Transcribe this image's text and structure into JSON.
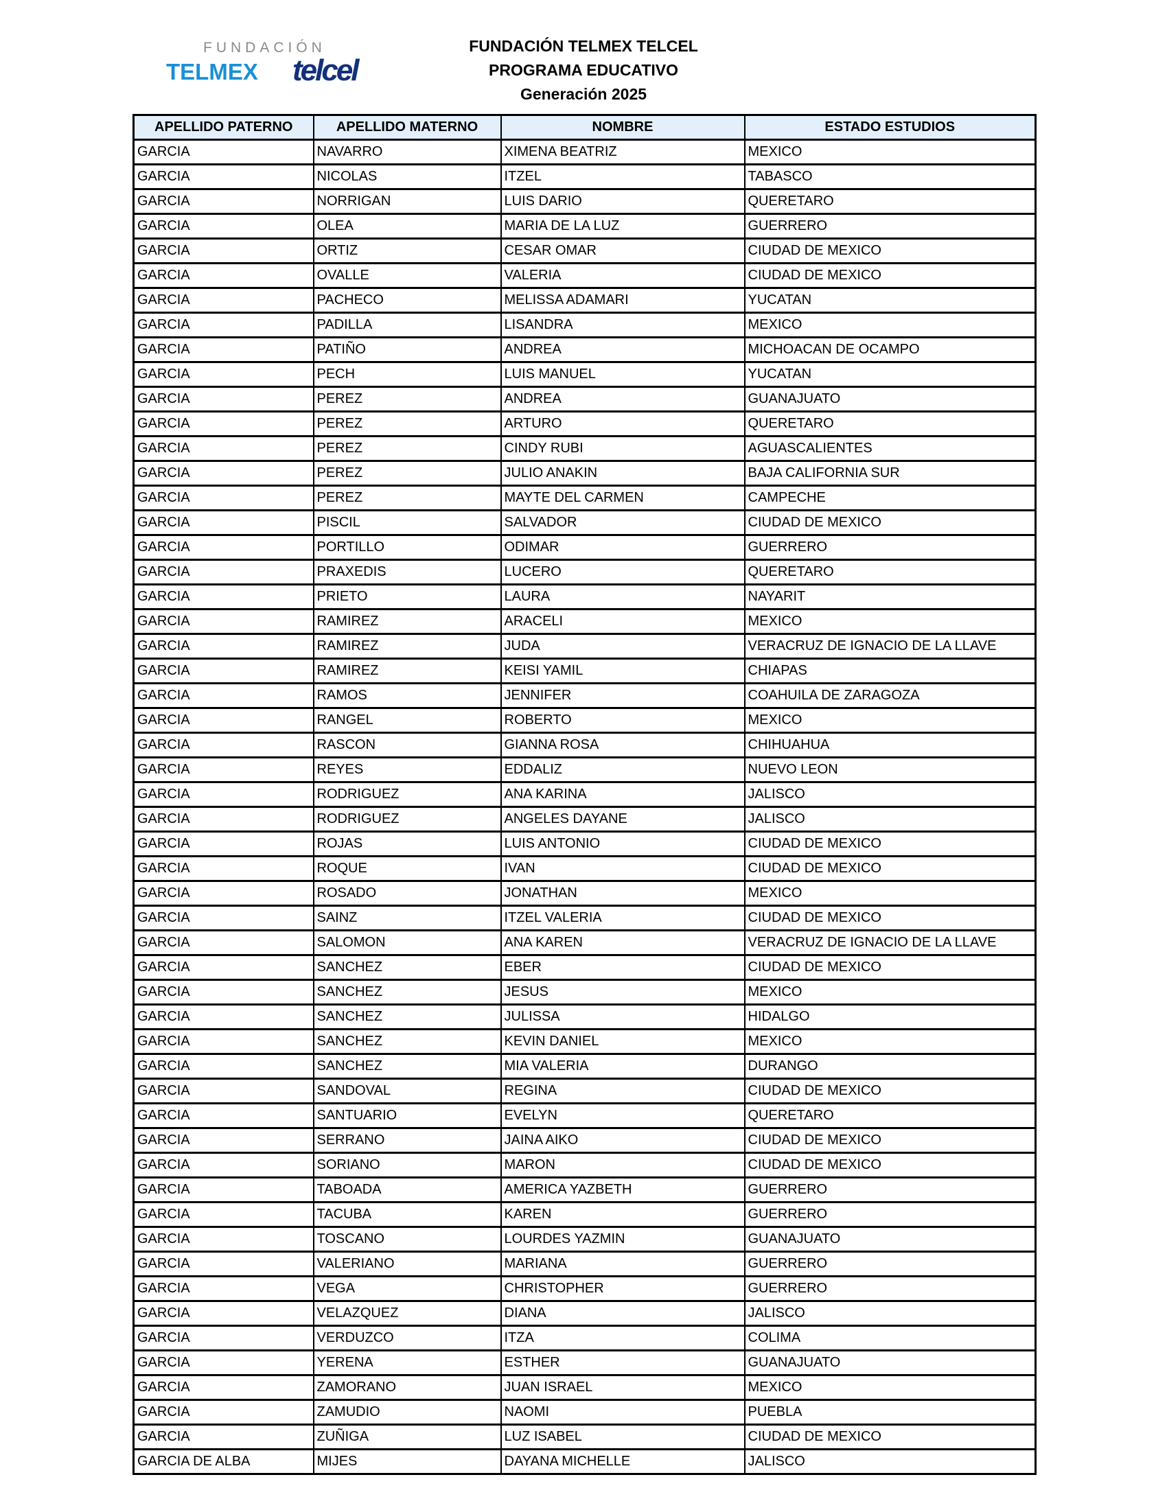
{
  "logo": {
    "line1": "FUNDACIÓN",
    "telmex": "TELMEX",
    "telcel": "telcel"
  },
  "header": {
    "title": "FUNDACIÓN TELMEX TELCEL",
    "subtitle": "PROGRAMA EDUCATIVO",
    "generation": "Generación 2025"
  },
  "colors": {
    "header_bg": "#e3f0fb",
    "telmex_blue": "#1a8fd6",
    "telcel_navy": "#13307a"
  },
  "table": {
    "columns": [
      "APELLIDO PATERNO",
      "APELLIDO MATERNO",
      "NOMBRE",
      "ESTADO ESTUDIOS"
    ],
    "rows": [
      [
        "GARCIA",
        "NAVARRO",
        "XIMENA BEATRIZ",
        "MEXICO"
      ],
      [
        "GARCIA",
        "NICOLAS",
        "ITZEL",
        "TABASCO"
      ],
      [
        "GARCIA",
        "NORRIGAN",
        "LUIS DARIO",
        "QUERETARO"
      ],
      [
        "GARCIA",
        "OLEA",
        "MARIA DE LA LUZ",
        "GUERRERO"
      ],
      [
        "GARCIA",
        "ORTIZ",
        "CESAR OMAR",
        "CIUDAD DE MEXICO"
      ],
      [
        "GARCIA",
        "OVALLE",
        "VALERIA",
        "CIUDAD DE MEXICO"
      ],
      [
        "GARCIA",
        "PACHECO",
        "MELISSA ADAMARI",
        "YUCATAN"
      ],
      [
        "GARCIA",
        "PADILLA",
        "LISANDRA",
        "MEXICO"
      ],
      [
        "GARCIA",
        "PATIÑO",
        "ANDREA",
        "MICHOACAN DE OCAMPO"
      ],
      [
        "GARCIA",
        "PECH",
        "LUIS MANUEL",
        "YUCATAN"
      ],
      [
        "GARCIA",
        "PEREZ",
        "ANDREA",
        "GUANAJUATO"
      ],
      [
        "GARCIA",
        "PEREZ",
        "ARTURO",
        "QUERETARO"
      ],
      [
        "GARCIA",
        "PEREZ",
        "CINDY RUBI",
        "AGUASCALIENTES"
      ],
      [
        "GARCIA",
        "PEREZ",
        "JULIO ANAKIN",
        "BAJA CALIFORNIA SUR"
      ],
      [
        "GARCIA",
        "PEREZ",
        "MAYTE DEL CARMEN",
        "CAMPECHE"
      ],
      [
        "GARCIA",
        "PISCIL",
        "SALVADOR",
        "CIUDAD DE MEXICO"
      ],
      [
        "GARCIA",
        "PORTILLO",
        "ODIMAR",
        "GUERRERO"
      ],
      [
        "GARCIA",
        "PRAXEDIS",
        "LUCERO",
        "QUERETARO"
      ],
      [
        "GARCIA",
        "PRIETO",
        "LAURA",
        "NAYARIT"
      ],
      [
        "GARCIA",
        "RAMIREZ",
        "ARACELI",
        "MEXICO"
      ],
      [
        "GARCIA",
        "RAMIREZ",
        "JUDA",
        "VERACRUZ DE IGNACIO DE LA LLAVE"
      ],
      [
        "GARCIA",
        "RAMIREZ",
        "KEISI YAMIL",
        "CHIAPAS"
      ],
      [
        "GARCIA",
        "RAMOS",
        "JENNIFER",
        "COAHUILA DE ZARAGOZA"
      ],
      [
        "GARCIA",
        "RANGEL",
        "ROBERTO",
        "MEXICO"
      ],
      [
        "GARCIA",
        "RASCON",
        "GIANNA ROSA",
        "CHIHUAHUA"
      ],
      [
        "GARCIA",
        "REYES",
        "EDDALIZ",
        "NUEVO LEON"
      ],
      [
        "GARCIA",
        "RODRIGUEZ",
        "ANA KARINA",
        "JALISCO"
      ],
      [
        "GARCIA",
        "RODRIGUEZ",
        "ANGELES DAYANE",
        "JALISCO"
      ],
      [
        "GARCIA",
        "ROJAS",
        "LUIS ANTONIO",
        "CIUDAD DE MEXICO"
      ],
      [
        "GARCIA",
        "ROQUE",
        "IVAN",
        "CIUDAD DE MEXICO"
      ],
      [
        "GARCIA",
        "ROSADO",
        "JONATHAN",
        "MEXICO"
      ],
      [
        "GARCIA",
        "SAINZ",
        "ITZEL VALERIA",
        "CIUDAD DE MEXICO"
      ],
      [
        "GARCIA",
        "SALOMON",
        "ANA KAREN",
        "VERACRUZ DE IGNACIO DE LA LLAVE"
      ],
      [
        "GARCIA",
        "SANCHEZ",
        "EBER",
        "CIUDAD DE MEXICO"
      ],
      [
        "GARCIA",
        "SANCHEZ",
        "JESUS",
        "MEXICO"
      ],
      [
        "GARCIA",
        "SANCHEZ",
        "JULISSA",
        "HIDALGO"
      ],
      [
        "GARCIA",
        "SANCHEZ",
        "KEVIN DANIEL",
        "MEXICO"
      ],
      [
        "GARCIA",
        "SANCHEZ",
        "MIA VALERIA",
        "DURANGO"
      ],
      [
        "GARCIA",
        "SANDOVAL",
        "REGINA",
        "CIUDAD DE MEXICO"
      ],
      [
        "GARCIA",
        "SANTUARIO",
        "EVELYN",
        "QUERETARO"
      ],
      [
        "GARCIA",
        "SERRANO",
        "JAINA AIKO",
        "CIUDAD DE MEXICO"
      ],
      [
        "GARCIA",
        "SORIANO",
        "MARON",
        "CIUDAD DE MEXICO"
      ],
      [
        "GARCIA",
        "TABOADA",
        "AMERICA YAZBETH",
        "GUERRERO"
      ],
      [
        "GARCIA",
        "TACUBA",
        "KAREN",
        "GUERRERO"
      ],
      [
        "GARCIA",
        "TOSCANO",
        "LOURDES YAZMIN",
        "GUANAJUATO"
      ],
      [
        "GARCIA",
        "VALERIANO",
        "MARIANA",
        "GUERRERO"
      ],
      [
        "GARCIA",
        "VEGA",
        "CHRISTOPHER",
        "GUERRERO"
      ],
      [
        "GARCIA",
        "VELAZQUEZ",
        "DIANA",
        "JALISCO"
      ],
      [
        "GARCIA",
        "VERDUZCO",
        "ITZA",
        "COLIMA"
      ],
      [
        "GARCIA",
        "YERENA",
        "ESTHER",
        "GUANAJUATO"
      ],
      [
        "GARCIA",
        "ZAMORANO",
        "JUAN ISRAEL",
        "MEXICO"
      ],
      [
        "GARCIA",
        "ZAMUDIO",
        "NAOMI",
        "PUEBLA"
      ],
      [
        "GARCIA",
        "ZUÑIGA",
        "LUZ ISABEL",
        "CIUDAD DE MEXICO"
      ],
      [
        "GARCIA DE ALBA",
        "MIJES",
        "DAYANA MICHELLE",
        "JALISCO"
      ]
    ]
  }
}
